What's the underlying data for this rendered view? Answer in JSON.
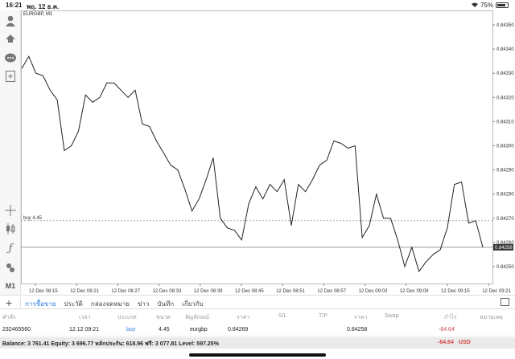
{
  "status": {
    "time": "16:21",
    "date": "พฤ. 12 ธ.ค.",
    "battery": "75%"
  },
  "chart_title": "EURGBP, M1",
  "toolbar": {
    "timeframe": "M1"
  },
  "position_line_label": "buy 4.45",
  "tabs": [
    "การซื้อขาย",
    "ประวัติ",
    "กล่องจดหมาย",
    "ข่าว",
    "บันทึก",
    "เกี่ยวกับ"
  ],
  "table": {
    "headers": [
      "คำสั่ง",
      "เวลา",
      "ประเภท",
      "ขนาด",
      "สัญลักษณ์",
      "ราคา",
      "S/L",
      "T/P",
      "ราคา",
      "Swap",
      "กำไร",
      "หมายเหตุ"
    ],
    "row": {
      "order": "232465560",
      "time": "12.12 09:21",
      "type": "buy",
      "size": "4.45",
      "symbol": "eurgbp",
      "open_price": "0.84269",
      "sl": "",
      "tp": "",
      "price": "0.84258",
      "swap": "",
      "profit": "-64.64",
      "comment": ""
    }
  },
  "balance": {
    "text": "Balance: 3 761.41 Equity: 3 696.77 หลักประกัน: 618.96 ฟรี: 3 077.81 Level: 597.25%",
    "profit": "-64.64",
    "currency": "USD"
  },
  "colors": {
    "accent": "#2a7de1",
    "loss": "#d64545",
    "price_line": "#222222"
  },
  "chart_data": {
    "type": "line",
    "title": "EURGBP, M1",
    "x_ticks": [
      "12 Dec 08:15",
      "12 Dec 08:21",
      "12 Dec 08:27",
      "12 Dec 08:33",
      "12 Dec 08:39",
      "12 Dec 08:45",
      "12 Dec 08:51",
      "12 Dec 08:57",
      "12 Dec 09:03",
      "12 Dec 09:09",
      "12 Dec 09:15",
      "12 Dec 09:21"
    ],
    "y_ticks": [
      0.8425,
      0.8426,
      0.8427,
      0.8428,
      0.8429,
      0.843,
      0.8431,
      0.8432,
      0.8433,
      0.8434,
      0.8435
    ],
    "y_tick_labels": [
      "0.84250",
      "0.84260",
      "0.84270",
      "0.84280",
      "0.84290",
      "0.84300",
      "0.84310",
      "0.84320",
      "0.84330",
      "0.84340",
      "0.84350"
    ],
    "ylim": [
      0.84243,
      0.84356
    ],
    "values": [
      0.84332,
      0.84337,
      0.8433,
      0.84329,
      0.84323,
      0.84319,
      0.84298,
      0.843,
      0.84306,
      0.84321,
      0.84318,
      0.8432,
      0.84326,
      0.84326,
      0.84323,
      0.8432,
      0.84323,
      0.84309,
      0.84308,
      0.84302,
      0.84297,
      0.84292,
      0.8429,
      0.84282,
      0.84273,
      0.84278,
      0.84286,
      0.84295,
      0.8427,
      0.84266,
      0.84265,
      0.84261,
      0.84276,
      0.84283,
      0.84278,
      0.84284,
      0.84281,
      0.84286,
      0.84267,
      0.84284,
      0.84281,
      0.84286,
      0.84292,
      0.84294,
      0.84302,
      0.84301,
      0.84299,
      0.843,
      0.84262,
      0.84267,
      0.8428,
      0.8427,
      0.8427,
      0.84261,
      0.8425,
      0.84258,
      0.84248,
      0.84252,
      0.84255,
      0.84257,
      0.84266,
      0.84284,
      0.84285,
      0.84268,
      0.84269,
      0.84258
    ],
    "current_price": 0.84258,
    "current_price_label": "0.84258",
    "position_price": 0.84269
  }
}
